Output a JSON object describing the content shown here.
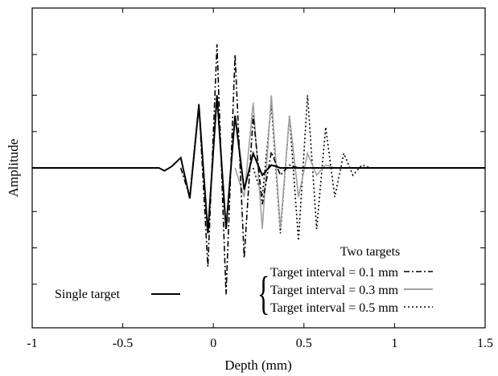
{
  "chart_data": {
    "type": "line",
    "title": "",
    "xlabel": "Depth (mm)",
    "ylabel": "Amplitude",
    "xlim": [
      -1,
      1.5
    ],
    "ylim": [
      -1.1,
      1.1
    ],
    "x_ticks": [
      -1,
      -0.5,
      0,
      0.5,
      1,
      1.5
    ],
    "x_tick_labels": [
      "-1",
      "-0.5",
      "0",
      "0.5",
      "1",
      "1.5"
    ],
    "y_ticks": [
      -0.8,
      -0.55,
      -0.3,
      0,
      0.25,
      0.5,
      0.78
    ],
    "y_tick_labels_shown": false,
    "grid": false,
    "legend_heading": "Two targets",
    "series": [
      {
        "name": "Single target",
        "color": "#000000",
        "style": "solid",
        "x": [
          -1,
          -0.3,
          -0.27,
          -0.23,
          -0.18,
          -0.13,
          -0.08,
          -0.03,
          0.02,
          0.07,
          0.12,
          0.17,
          0.22,
          0.27,
          0.32,
          0.37,
          0.42,
          0.47,
          1.5
        ],
        "y": [
          0,
          0,
          -0.02,
          0.01,
          0.07,
          -0.21,
          0.43,
          -0.45,
          0.5,
          -0.42,
          0.36,
          -0.15,
          0.1,
          -0.05,
          0.02,
          0,
          0,
          0,
          0
        ]
      },
      {
        "name": "Target interval = 0.1 mm",
        "color": "#000000",
        "style": "dashdot",
        "x": [
          -0.18,
          -0.13,
          -0.08,
          -0.03,
          0.02,
          0.07,
          0.12,
          0.17,
          0.22,
          0.27,
          0.32,
          0.37,
          0.42,
          0.47,
          0.52
        ],
        "y": [
          0,
          -0.2,
          0.44,
          -0.68,
          0.85,
          -0.87,
          0.78,
          -0.62,
          0.36,
          -0.25,
          0.11,
          -0.05,
          0.02,
          0,
          0
        ]
      },
      {
        "name": "Target interval = 0.3 mm",
        "color": "#a0a0a0",
        "style": "solid",
        "x": [
          0.12,
          0.17,
          0.22,
          0.27,
          0.32,
          0.37,
          0.42,
          0.47,
          0.52,
          0.57,
          0.62,
          0.67
        ],
        "y": [
          0,
          -0.2,
          0.45,
          -0.42,
          0.5,
          -0.42,
          0.36,
          -0.2,
          0.1,
          -0.05,
          0.02,
          0
        ]
      },
      {
        "name": "Target interval = 0.5 mm",
        "color": "#000000",
        "style": "dotted",
        "x": [
          0.22,
          0.27,
          0.32,
          0.37,
          0.42,
          0.47,
          0.52,
          0.57,
          0.62,
          0.67,
          0.72,
          0.77,
          0.82,
          0.87
        ],
        "y": [
          0,
          -0.2,
          0.44,
          -0.45,
          0.36,
          -0.5,
          0.5,
          -0.42,
          0.28,
          -0.2,
          0.1,
          -0.05,
          0.02,
          0
        ]
      }
    ]
  }
}
